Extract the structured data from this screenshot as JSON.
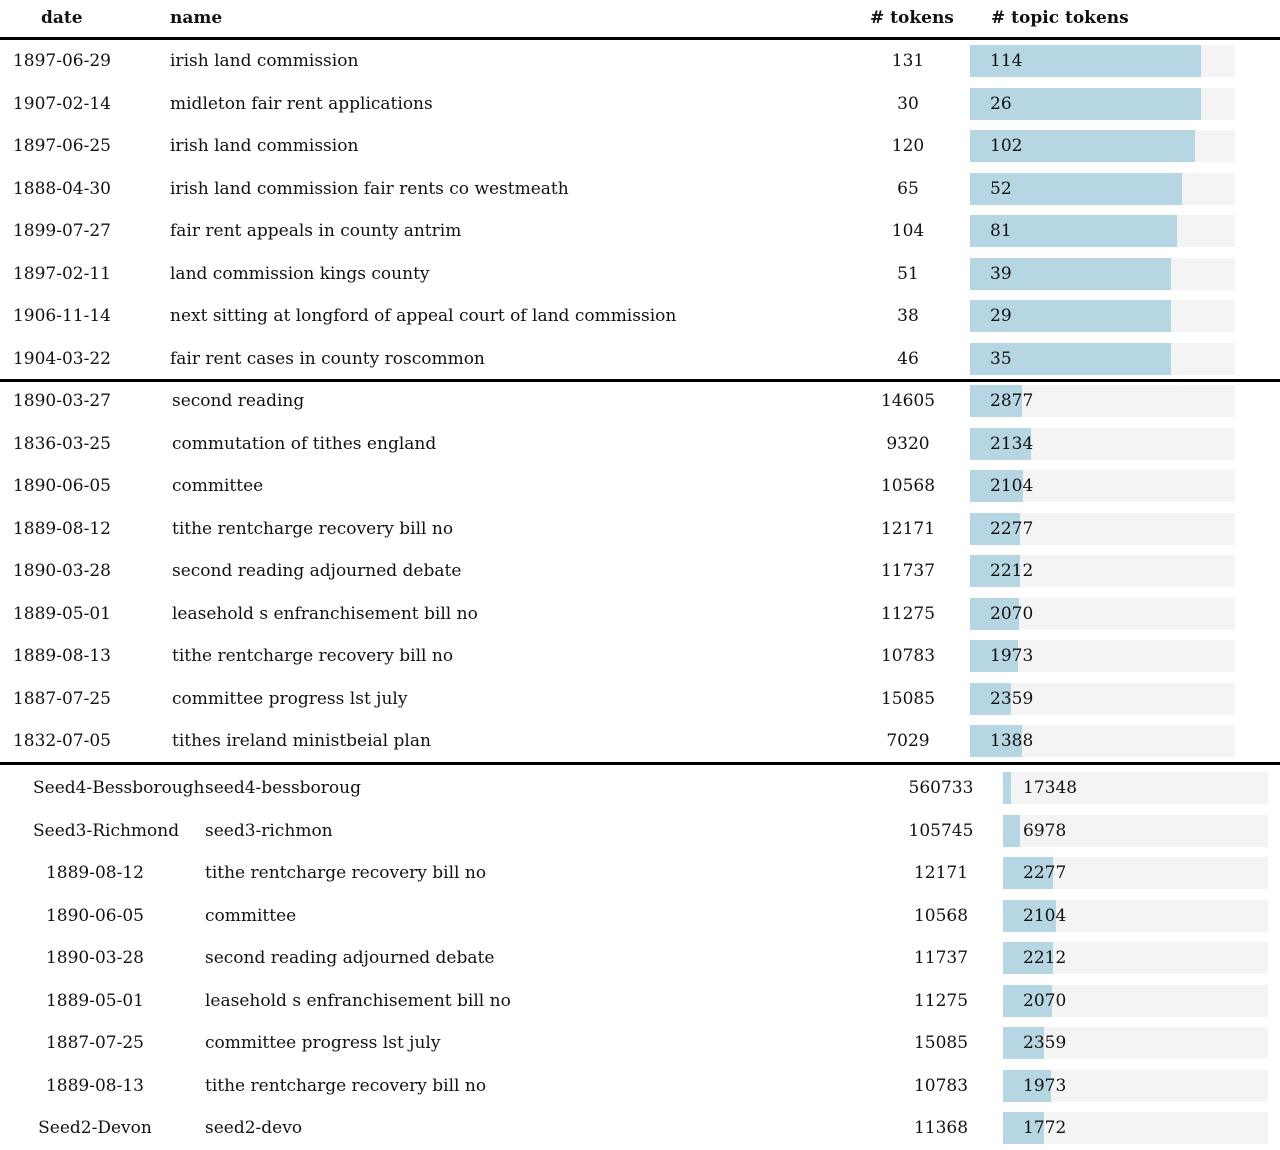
{
  "header": {
    "date": "date",
    "name": "name",
    "tokens": "# tokens",
    "topic_tokens": "# topic tokens"
  },
  "sections": [
    {
      "max_topic_tokens": 130,
      "rows": [
        {
          "date": "1897-06-29",
          "name": "irish land commission",
          "tokens": "131",
          "topic_tokens": "114",
          "fraction": 0.87
        },
        {
          "date": "1907-02-14",
          "name": "midleton fair rent applications",
          "tokens": "30",
          "topic_tokens": "26",
          "fraction": 0.87
        },
        {
          "date": "1897-06-25",
          "name": "irish land commission",
          "tokens": "120",
          "topic_tokens": "102",
          "fraction": 0.85
        },
        {
          "date": "1888-04-30",
          "name": "irish land commission fair rents co westmeath",
          "tokens": "65",
          "topic_tokens": "52",
          "fraction": 0.8
        },
        {
          "date": "1899-07-27",
          "name": "fair rent appeals in county antrim",
          "tokens": "104",
          "topic_tokens": "81",
          "fraction": 0.78
        },
        {
          "date": "1897-02-11",
          "name": "land commission kings county",
          "tokens": "51",
          "topic_tokens": "39",
          "fraction": 0.76
        },
        {
          "date": "1906-11-14",
          "name": "next sitting at longford of appeal court of land commission",
          "tokens": "38",
          "topic_tokens": "29",
          "fraction": 0.76
        },
        {
          "date": "1904-03-22",
          "name": "fair rent cases in county roscommon",
          "tokens": "46",
          "topic_tokens": "35",
          "fraction": 0.76
        }
      ]
    },
    {
      "rows": [
        {
          "date": "1890-03-27",
          "name": "second reading",
          "tokens": "14605",
          "topic_tokens": "2877",
          "fraction": 0.197
        },
        {
          "date": "1836-03-25",
          "name": "commutation of tithes england",
          "tokens": "9320",
          "topic_tokens": "2134",
          "fraction": 0.229
        },
        {
          "date": "1890-06-05",
          "name": "committee",
          "tokens": "10568",
          "topic_tokens": "2104",
          "fraction": 0.199
        },
        {
          "date": "1889-08-12",
          "name": "tithe rentcharge recovery bill no",
          "tokens": "12171",
          "topic_tokens": "2277",
          "fraction": 0.187
        },
        {
          "date": "1890-03-28",
          "name": "second reading adjourned debate",
          "tokens": "11737",
          "topic_tokens": "2212",
          "fraction": 0.188
        },
        {
          "date": "1889-05-01",
          "name": "leasehold s enfranchisement bill no",
          "tokens": "11275",
          "topic_tokens": "2070",
          "fraction": 0.184
        },
        {
          "date": "1889-08-13",
          "name": "tithe rentcharge recovery bill no",
          "tokens": "10783",
          "topic_tokens": "1973",
          "fraction": 0.183
        },
        {
          "date": "1887-07-25",
          "name": "committee progress lst july",
          "tokens": "15085",
          "topic_tokens": "2359",
          "fraction": 0.156
        },
        {
          "date": "1832-07-05",
          "name": "tithes ireland ministbeial plan",
          "tokens": "7029",
          "topic_tokens": "1388",
          "fraction": 0.197
        }
      ]
    },
    {
      "rows": [
        {
          "date": "Seed4-Bessborough",
          "name": "seed4-bessboroug",
          "tokens": "560733",
          "topic_tokens": "17348",
          "fraction": 0.031
        },
        {
          "date": "Seed3-Richmond",
          "name": "seed3-richmon",
          "tokens": "105745",
          "topic_tokens": "6978",
          "fraction": 0.066
        },
        {
          "date": "1889-08-12",
          "name": "tithe rentcharge recovery bill no",
          "tokens": "12171",
          "topic_tokens": "2277",
          "fraction": 0.187
        },
        {
          "date": "1890-06-05",
          "name": "committee",
          "tokens": "10568",
          "topic_tokens": "2104",
          "fraction": 0.199
        },
        {
          "date": "1890-03-28",
          "name": "second reading adjourned debate",
          "tokens": "11737",
          "topic_tokens": "2212",
          "fraction": 0.188
        },
        {
          "date": "1889-05-01",
          "name": "leasehold s enfranchisement bill no",
          "tokens": "11275",
          "topic_tokens": "2070",
          "fraction": 0.184
        },
        {
          "date": "1887-07-25",
          "name": "committee progress lst july",
          "tokens": "15085",
          "topic_tokens": "2359",
          "fraction": 0.156
        },
        {
          "date": "1889-08-13",
          "name": "tithe rentcharge recovery bill no",
          "tokens": "10783",
          "topic_tokens": "1973",
          "fraction": 0.183
        },
        {
          "date": "Seed2-Devon",
          "name": "seed2-devo",
          "tokens": "11368",
          "topic_tokens": "1772",
          "fraction": 0.156
        }
      ]
    }
  ],
  "colors": {
    "bar_fill": "#b6d6e3",
    "bar_track": "#f4f4f4",
    "rule": "#000000"
  }
}
